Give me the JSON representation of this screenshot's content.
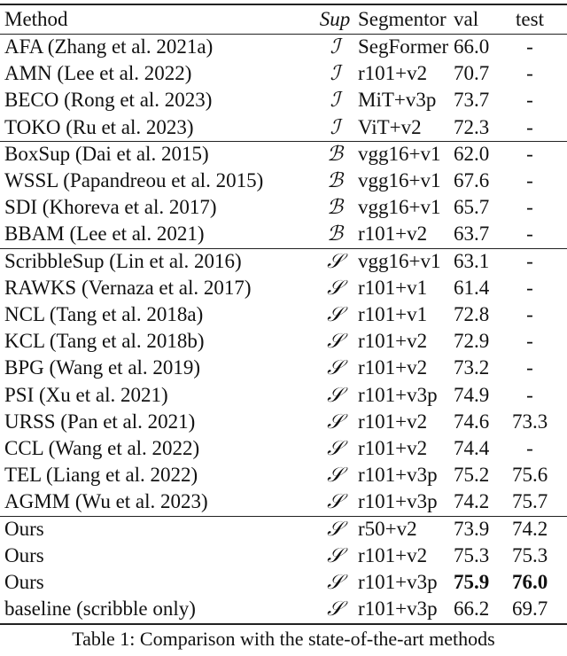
{
  "table": {
    "header": [
      "Method",
      "Sup",
      "Segmentor",
      "val",
      "test"
    ],
    "groups": [
      [
        [
          "AFA (Zhang et al. 2021a)",
          "ℐ",
          "SegFormer",
          "66.0",
          "-"
        ],
        [
          "AMN (Lee et al. 2022)",
          "ℐ",
          "r101+v2",
          "70.7",
          "-"
        ],
        [
          "BECO (Rong et al. 2023)",
          "ℐ",
          "MiT+v3p",
          "73.7",
          "-"
        ],
        [
          "TOKO (Ru et al. 2023)",
          "ℐ",
          "ViT+v2",
          "72.3",
          "-"
        ]
      ],
      [
        [
          "BoxSup (Dai et al. 2015)",
          "ℬ",
          "vgg16+v1",
          "62.0",
          "-"
        ],
        [
          "WSSL (Papandreou et al. 2015)",
          "ℬ",
          "vgg16+v1",
          "67.6",
          "-"
        ],
        [
          "SDI (Khoreva et al. 2017)",
          "ℬ",
          "vgg16+v1",
          "65.7",
          "-"
        ],
        [
          "BBAM (Lee et al. 2021)",
          "ℬ",
          "r101+v2",
          "63.7",
          "-"
        ]
      ],
      [
        [
          "ScribbleSup (Lin et al. 2016)",
          "𝒮",
          "vgg16+v1",
          "63.1",
          "-"
        ],
        [
          "RAWKS (Vernaza et al. 2017)",
          "𝒮",
          "r101+v1",
          "61.4",
          "-"
        ],
        [
          "NCL (Tang et al. 2018a)",
          "𝒮",
          "r101+v1",
          "72.8",
          "-"
        ],
        [
          "KCL (Tang et al. 2018b)",
          "𝒮",
          "r101+v2",
          "72.9",
          "-"
        ],
        [
          "BPG (Wang et al. 2019)",
          "𝒮",
          "r101+v2",
          "73.2",
          "-"
        ],
        [
          "PSI (Xu et al. 2021)",
          "𝒮",
          "r101+v3p",
          "74.9",
          "-"
        ],
        [
          "URSS (Pan et al. 2021)",
          "𝒮",
          "r101+v2",
          "74.6",
          "73.3"
        ],
        [
          "CCL (Wang et al. 2022)",
          "𝒮",
          "r101+v2",
          "74.4",
          "-"
        ],
        [
          "TEL (Liang et al. 2022)",
          "𝒮",
          "r101+v3p",
          "75.2",
          "75.6"
        ],
        [
          "AGMM (Wu et al. 2023)",
          "𝒮",
          "r101+v3p",
          "74.2",
          "75.7"
        ]
      ],
      [
        [
          "Ours",
          "𝒮",
          "r50+v2",
          "73.9",
          "74.2"
        ],
        [
          "Ours",
          "𝒮",
          "r101+v2",
          "75.3",
          "75.3"
        ],
        [
          "Ours",
          "𝒮",
          "r101+v3p",
          "75.9",
          "76.0"
        ],
        [
          "baseline (scribble only)",
          "𝒮",
          "r101+v3p",
          "66.2",
          "69.7"
        ]
      ]
    ]
  },
  "caption": "Table 1: Comparison with the state-of-the-art methods"
}
